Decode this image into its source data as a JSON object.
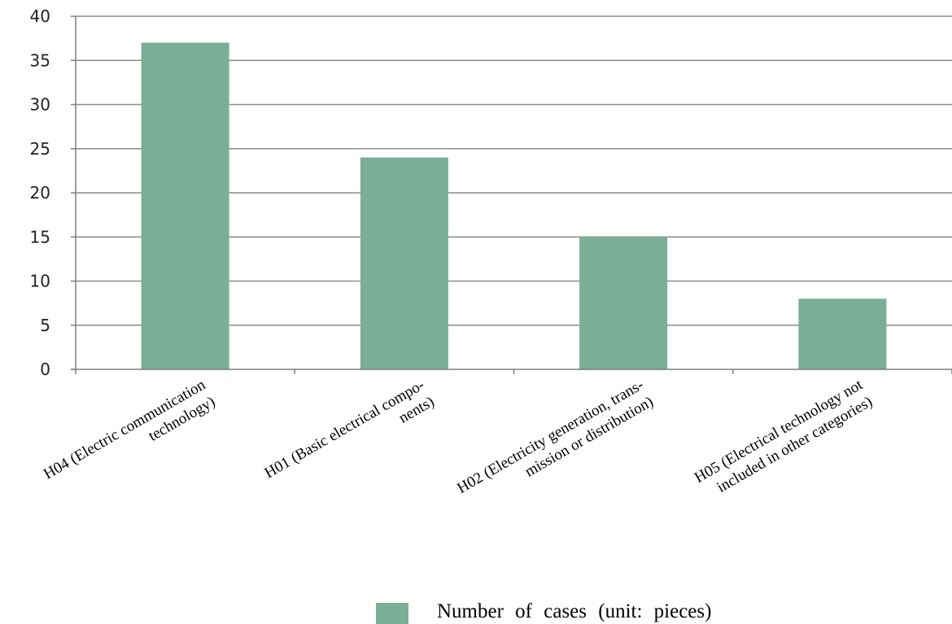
{
  "chart_data": {
    "type": "bar",
    "categories": [
      [
        "H04 (Electric communication",
        "technology)"
      ],
      [
        "H01   (Basic   electrical   compo-",
        "nents)"
      ],
      [
        "H02 (Electricity generation, trans-",
        "mission or distribution)"
      ],
      [
        "H05 (Electrical technology not",
        "included in other categories)"
      ]
    ],
    "series": [
      {
        "name": "Number of cases (unit: pieces)",
        "values": [
          37,
          24,
          15,
          8
        ]
      }
    ],
    "ylim": [
      0,
      40
    ],
    "yticks": [
      0,
      5,
      10,
      15,
      20,
      25,
      30,
      35,
      40
    ],
    "ytick_labels": [
      "0",
      "5",
      "10",
      "15",
      "20",
      "25",
      "30",
      "35",
      "40"
    ],
    "grid": true,
    "legend_position": "bottom",
    "colors": {
      "bar": "#7aae96",
      "grid": "#8c8c8c",
      "axis": "#7f7f7f"
    }
  }
}
